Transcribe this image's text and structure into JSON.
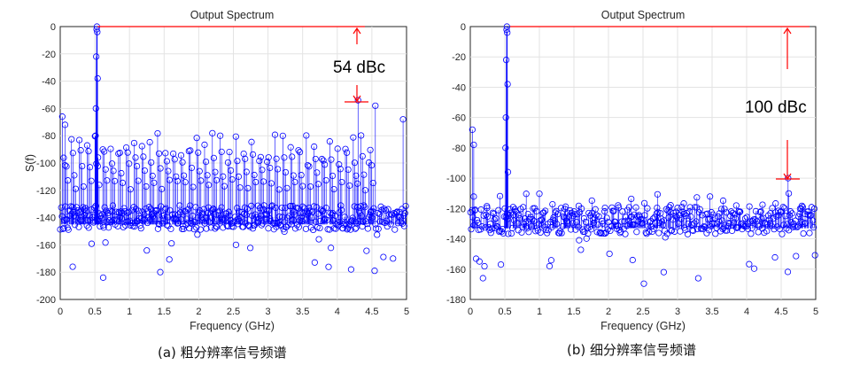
{
  "chart_data": [
    {
      "type": "scatter",
      "title": "Output Spectrum",
      "xlabel": "Frequency (GHz)",
      "ylabel": "S(f)",
      "xlim": [
        0,
        5
      ],
      "ylim": [
        -200,
        0
      ],
      "xticks": [
        "0",
        "0.5",
        "1",
        "1.5",
        "2",
        "2.5",
        "3",
        "3.5",
        "4",
        "4.5",
        "5"
      ],
      "yticks": [
        "0",
        "-20",
        "-40",
        "-60",
        "-80",
        "-100",
        "-120",
        "-140",
        "-160",
        "-180",
        "-200"
      ],
      "grid": true,
      "marker": "circle-stem",
      "series_color": "#0000ff",
      "annotation_color": "#ff0000",
      "fundamental": {
        "freq_ghz": 0.53,
        "level_dbc": 0
      },
      "spur_level_db": -54,
      "spur_freq_ghz": 4.3,
      "floor_db": -140,
      "annotation": "54 dBc",
      "caption": "(a) 粗分辨率信号频谱"
    },
    {
      "type": "scatter",
      "title": "Output Spectrum",
      "xlabel": "Frequency (GHz)",
      "ylabel": "",
      "xlim": [
        0,
        5
      ],
      "ylim": [
        -180,
        0
      ],
      "xticks": [
        "0",
        "0.5",
        "1",
        "1.5",
        "2",
        "2.5",
        "3",
        "3.5",
        "4",
        "4.5",
        "5"
      ],
      "yticks": [
        "0",
        "-20",
        "-40",
        "-60",
        "-80",
        "-100",
        "-120",
        "-140",
        "-160",
        "-180"
      ],
      "grid": true,
      "marker": "circle-stem",
      "series_color": "#0000ff",
      "annotation_color": "#ff0000",
      "fundamental": {
        "freq_ghz": 0.53,
        "level_dbc": 0
      },
      "spur_level_db": -100,
      "spur_freq_ghz": 4.6,
      "floor_db": -128,
      "annotation": "100 dBc",
      "caption": "(b) 细分辨率信号频谱"
    }
  ]
}
